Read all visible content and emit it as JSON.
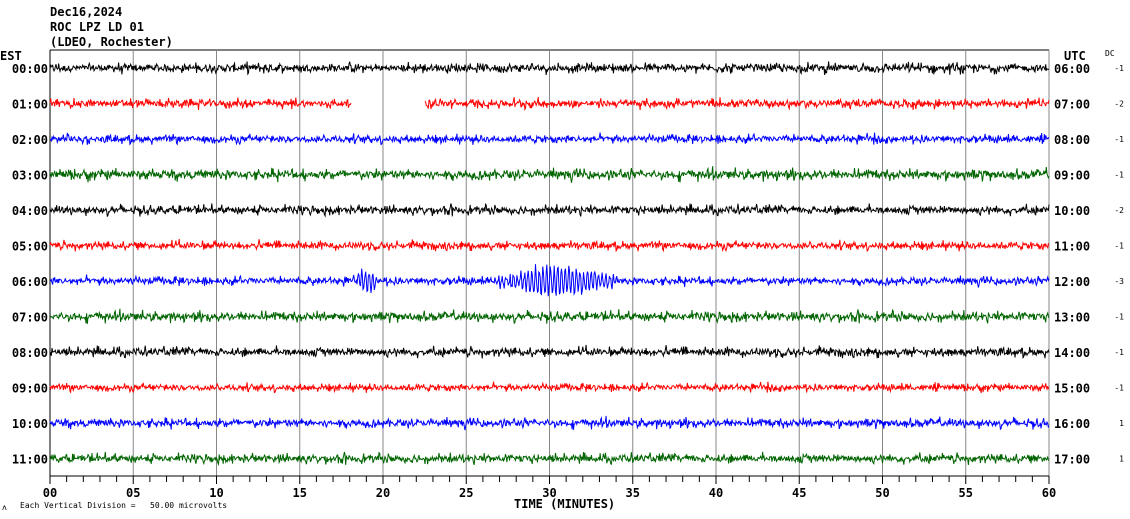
{
  "header": {
    "date": "Dec16,2024",
    "station": "ROC LPZ LD 01",
    "network": "(LDEO, Rochester)"
  },
  "chart_data": {
    "type": "line",
    "title": "ROC LPZ LD 01",
    "left_axis_label": "EST",
    "right_axis_label": "UTC",
    "dc_label": "DC",
    "xlabel": "TIME (MINUTES)",
    "xlim": [
      0,
      60
    ],
    "x_ticks": [
      "00",
      "05",
      "10",
      "15",
      "20",
      "25",
      "30",
      "35",
      "40",
      "45",
      "50",
      "55",
      "60"
    ],
    "grid": true,
    "scale_note": "Each Vertical Division =   50.00 microvolts",
    "corner_mark": "ʌ",
    "traces": [
      {
        "est": "00:00",
        "utc": "06:00",
        "dc": "-1",
        "color": "#000000",
        "amp": 0.12
      },
      {
        "est": "01:00",
        "utc": "07:00",
        "dc": "-2",
        "color": "#ff0000",
        "amp": 0.12,
        "gap": [
          18.1,
          22.5
        ]
      },
      {
        "est": "02:00",
        "utc": "08:00",
        "dc": "-1",
        "color": "#0000ff",
        "amp": 0.11
      },
      {
        "est": "03:00",
        "utc": "09:00",
        "dc": "-1",
        "color": "#006400",
        "amp": 0.14
      },
      {
        "est": "04:00",
        "utc": "10:00",
        "dc": "-2",
        "color": "#000000",
        "amp": 0.12
      },
      {
        "est": "05:00",
        "utc": "11:00",
        "dc": "-1",
        "color": "#ff0000",
        "amp": 0.11
      },
      {
        "est": "06:00",
        "utc": "12:00",
        "dc": "-3",
        "color": "#0000ff",
        "amp": 0.11,
        "events": [
          {
            "start": 18.3,
            "end": 19.8,
            "amp": 0.35
          },
          {
            "start": 26.5,
            "end": 34.5,
            "amp": 0.45
          }
        ]
      },
      {
        "est": "07:00",
        "utc": "13:00",
        "dc": "-1",
        "color": "#006400",
        "amp": 0.13
      },
      {
        "est": "08:00",
        "utc": "14:00",
        "dc": "-1",
        "color": "#000000",
        "amp": 0.12
      },
      {
        "est": "09:00",
        "utc": "15:00",
        "dc": "-1",
        "color": "#ff0000",
        "amp": 0.1
      },
      {
        "est": "10:00",
        "utc": "16:00",
        "dc": "1",
        "color": "#0000ff",
        "amp": 0.12
      },
      {
        "est": "11:00",
        "utc": "17:00",
        "dc": "1",
        "color": "#006400",
        "amp": 0.12
      }
    ]
  }
}
